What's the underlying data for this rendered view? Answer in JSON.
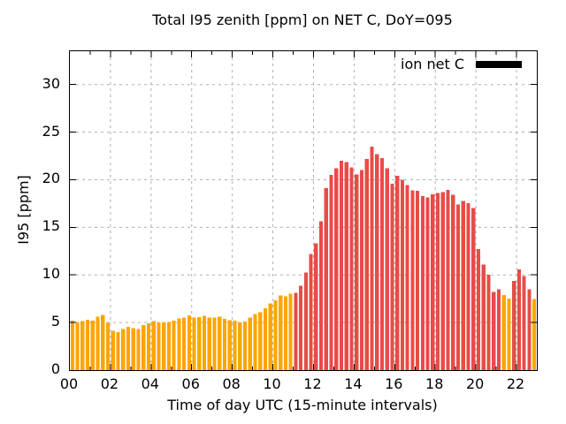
{
  "chart_data": {
    "type": "bar",
    "title": "Total I95 zenith [ppm] on NET C, DoY=095",
    "xlabel": "Time of day UTC (15-minute intervals)",
    "ylabel": "I95 [ppm]",
    "legend": {
      "label": "ion net C",
      "swatch_color": "#000000",
      "position": "top-right-inside"
    },
    "grid": true,
    "start_time": "00:00",
    "interval_minutes": 15,
    "xlim_hours": [
      0,
      23
    ],
    "ylim": [
      0,
      33.5
    ],
    "xtick_hours": [
      0,
      2,
      4,
      6,
      8,
      10,
      12,
      14,
      16,
      18,
      20,
      22
    ],
    "xtick_labels": [
      "00",
      "02",
      "04",
      "06",
      "08",
      "10",
      "12",
      "14",
      "16",
      "18",
      "20",
      "22"
    ],
    "minor_xtick_hours": [
      1,
      3,
      5,
      7,
      9,
      11,
      13,
      15,
      17,
      19,
      21
    ],
    "ytick_values": [
      0,
      5,
      10,
      15,
      20,
      25,
      30
    ],
    "colors": {
      "orange": "#ffa500",
      "red": "#e84c48",
      "grid": "#b0b0b0",
      "axis": "#000000"
    },
    "orange_ranges": [
      [
        0,
        43
      ],
      [
        85,
        86
      ],
      [
        91,
        91
      ]
    ],
    "values": [
      5.2,
      5.0,
      5.15,
      5.3,
      5.2,
      5.6,
      5.8,
      5.0,
      4.15,
      4.0,
      4.3,
      4.55,
      4.4,
      4.3,
      4.75,
      4.9,
      5.15,
      5.0,
      5.0,
      5.05,
      5.2,
      5.45,
      5.5,
      5.75,
      5.5,
      5.55,
      5.7,
      5.5,
      5.5,
      5.6,
      5.4,
      5.25,
      5.2,
      5.0,
      5.1,
      5.5,
      5.9,
      6.1,
      6.5,
      7.0,
      7.35,
      7.85,
      7.75,
      8.05,
      8.1,
      8.85,
      10.25,
      12.2,
      13.3,
      15.65,
      19.1,
      20.5,
      21.2,
      22.0,
      21.85,
      21.3,
      20.55,
      21.0,
      22.2,
      23.5,
      22.7,
      22.25,
      21.2,
      19.6,
      20.4,
      20.0,
      19.45,
      18.9,
      18.85,
      18.3,
      18.15,
      18.45,
      18.6,
      18.7,
      18.95,
      18.4,
      17.4,
      17.75,
      17.55,
      17.05,
      12.7,
      11.1,
      10.0,
      8.2,
      8.5,
      7.9,
      7.5,
      9.35,
      10.6,
      9.9,
      8.5,
      7.45
    ]
  }
}
